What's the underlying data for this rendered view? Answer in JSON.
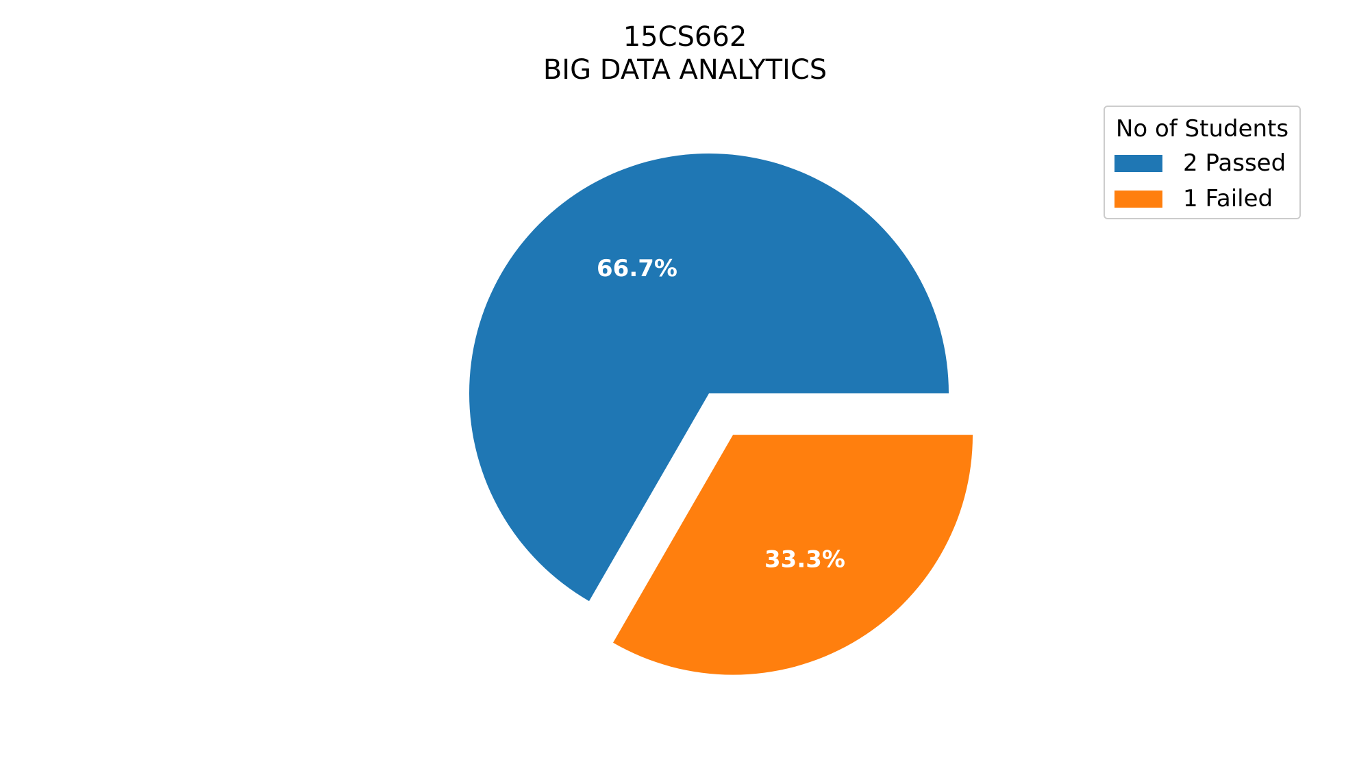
{
  "chart_data": {
    "type": "pie",
    "title_lines": [
      "15CS662",
      "BIG DATA ANALYTICS"
    ],
    "legend": {
      "title": "No of Students",
      "placement": "top-right",
      "entries": [
        "2 Passed",
        "1 Failed"
      ]
    },
    "slices": [
      {
        "label": "2 Passed",
        "value": 2,
        "percent_label": "66.7%",
        "color": "#1f77b4",
        "exploded": false
      },
      {
        "label": "1 Failed",
        "value": 1,
        "percent_label": "33.3%",
        "color": "#ff7f0e",
        "exploded": true
      }
    ],
    "start_angle_deg": 0,
    "direction": "counterclockwise"
  }
}
